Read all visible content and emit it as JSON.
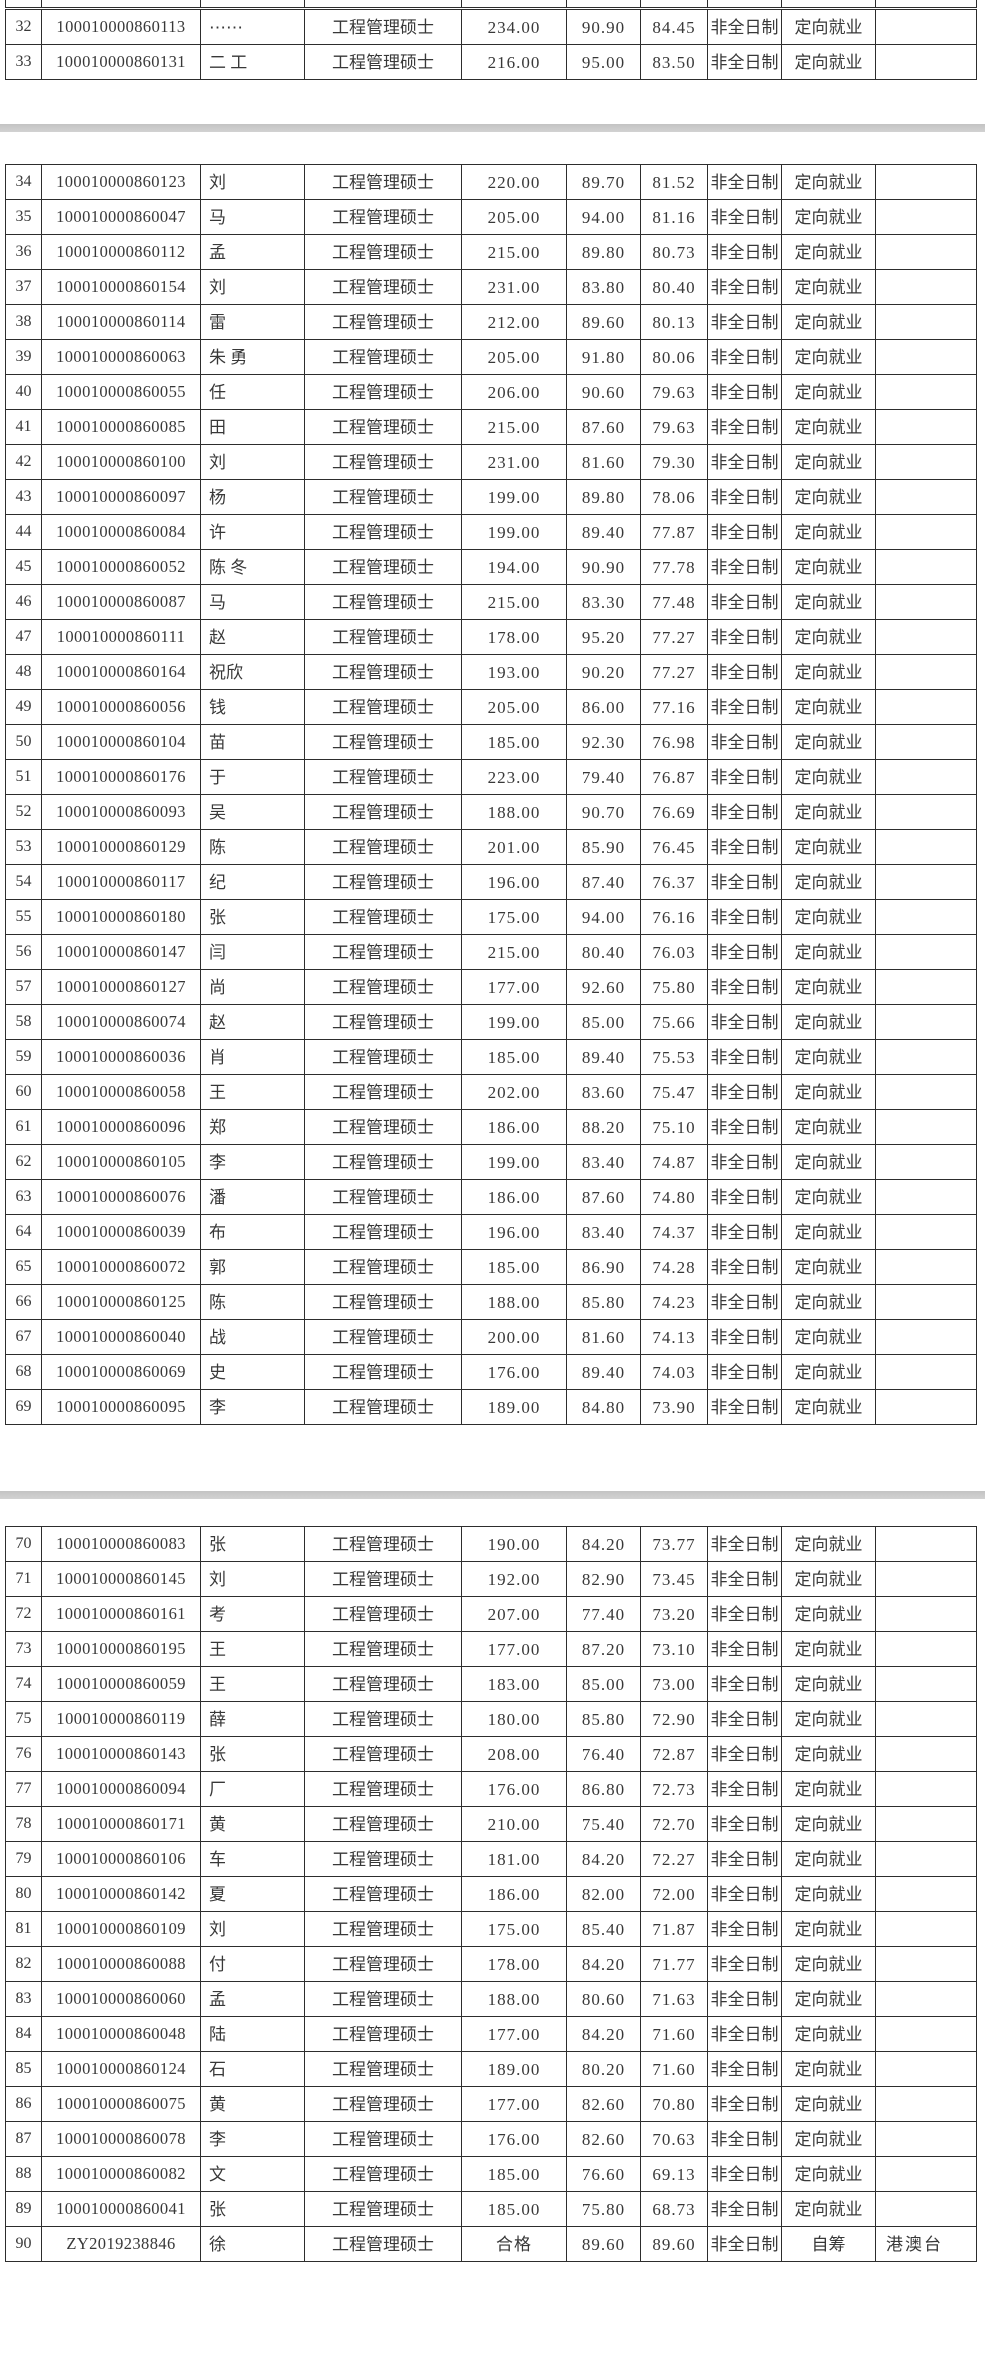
{
  "document": {
    "kind": "scanned-admissions-score-table",
    "visible_row_range": "32-90",
    "colors": {
      "border": "#2d2d2d",
      "text": "#383838",
      "page_break_bar": "#c9c9c9",
      "background": "#ffffff"
    }
  },
  "table": {
    "column_names": [
      "rank-cell",
      "candidate-id-cell",
      "name-cell",
      "program-cell",
      "total-score-cell",
      "second-score-cell",
      "weighted-score-cell",
      "study-mode-cell",
      "employment-type-cell",
      "remark-cell"
    ],
    "blocks": [
      {
        "label": "page-fragment-top",
        "start": 0,
        "count": 2
      },
      {
        "label": "page-middle",
        "start": 2,
        "count": 36
      },
      {
        "label": "page-bottom",
        "start": 38,
        "count": 21
      }
    ],
    "rows": [
      [
        32,
        "100010000860113",
        "⋯⋯",
        "工程管理硕士",
        "234.00",
        "90.90",
        "84.45",
        "非全日制",
        "定向就业",
        ""
      ],
      [
        33,
        "100010000860131",
        "二 工",
        "工程管理硕士",
        "216.00",
        "95.00",
        "83.50",
        "非全日制",
        "定向就业",
        ""
      ],
      [
        34,
        "100010000860123",
        "刘",
        "工程管理硕士",
        "220.00",
        "89.70",
        "81.52",
        "非全日制",
        "定向就业",
        ""
      ],
      [
        35,
        "100010000860047",
        "马",
        "工程管理硕士",
        "205.00",
        "94.00",
        "81.16",
        "非全日制",
        "定向就业",
        ""
      ],
      [
        36,
        "100010000860112",
        "孟",
        "工程管理硕士",
        "215.00",
        "89.80",
        "80.73",
        "非全日制",
        "定向就业",
        ""
      ],
      [
        37,
        "100010000860154",
        "刘",
        "工程管理硕士",
        "231.00",
        "83.80",
        "80.40",
        "非全日制",
        "定向就业",
        ""
      ],
      [
        38,
        "100010000860114",
        "雷",
        "工程管理硕士",
        "212.00",
        "89.60",
        "80.13",
        "非全日制",
        "定向就业",
        ""
      ],
      [
        39,
        "100010000860063",
        "朱 勇",
        "工程管理硕士",
        "205.00",
        "91.80",
        "80.06",
        "非全日制",
        "定向就业",
        ""
      ],
      [
        40,
        "100010000860055",
        "任",
        "工程管理硕士",
        "206.00",
        "90.60",
        "79.63",
        "非全日制",
        "定向就业",
        ""
      ],
      [
        41,
        "100010000860085",
        "田",
        "工程管理硕士",
        "215.00",
        "87.60",
        "79.63",
        "非全日制",
        "定向就业",
        ""
      ],
      [
        42,
        "100010000860100",
        "刘",
        "工程管理硕士",
        "231.00",
        "81.60",
        "79.30",
        "非全日制",
        "定向就业",
        ""
      ],
      [
        43,
        "100010000860097",
        "杨",
        "工程管理硕士",
        "199.00",
        "89.80",
        "78.06",
        "非全日制",
        "定向就业",
        ""
      ],
      [
        44,
        "100010000860084",
        "许",
        "工程管理硕士",
        "199.00",
        "89.40",
        "77.87",
        "非全日制",
        "定向就业",
        ""
      ],
      [
        45,
        "100010000860052",
        "陈 冬",
        "工程管理硕士",
        "194.00",
        "90.90",
        "77.78",
        "非全日制",
        "定向就业",
        ""
      ],
      [
        46,
        "100010000860087",
        "马",
        "工程管理硕士",
        "215.00",
        "83.30",
        "77.48",
        "非全日制",
        "定向就业",
        ""
      ],
      [
        47,
        "100010000860111",
        "赵",
        "工程管理硕士",
        "178.00",
        "95.20",
        "77.27",
        "非全日制",
        "定向就业",
        ""
      ],
      [
        48,
        "100010000860164",
        "祝欣",
        "工程管理硕士",
        "193.00",
        "90.20",
        "77.27",
        "非全日制",
        "定向就业",
        ""
      ],
      [
        49,
        "100010000860056",
        "钱",
        "工程管理硕士",
        "205.00",
        "86.00",
        "77.16",
        "非全日制",
        "定向就业",
        ""
      ],
      [
        50,
        "100010000860104",
        "苗",
        "工程管理硕士",
        "185.00",
        "92.30",
        "76.98",
        "非全日制",
        "定向就业",
        ""
      ],
      [
        51,
        "100010000860176",
        "于",
        "工程管理硕士",
        "223.00",
        "79.40",
        "76.87",
        "非全日制",
        "定向就业",
        ""
      ],
      [
        52,
        "100010000860093",
        "吴",
        "工程管理硕士",
        "188.00",
        "90.70",
        "76.69",
        "非全日制",
        "定向就业",
        ""
      ],
      [
        53,
        "100010000860129",
        "陈",
        "工程管理硕士",
        "201.00",
        "85.90",
        "76.45",
        "非全日制",
        "定向就业",
        ""
      ],
      [
        54,
        "100010000860117",
        "纪",
        "工程管理硕士",
        "196.00",
        "87.40",
        "76.37",
        "非全日制",
        "定向就业",
        ""
      ],
      [
        55,
        "100010000860180",
        "张",
        "工程管理硕士",
        "175.00",
        "94.00",
        "76.16",
        "非全日制",
        "定向就业",
        ""
      ],
      [
        56,
        "100010000860147",
        "闫",
        "工程管理硕士",
        "215.00",
        "80.40",
        "76.03",
        "非全日制",
        "定向就业",
        ""
      ],
      [
        57,
        "100010000860127",
        "尚",
        "工程管理硕士",
        "177.00",
        "92.60",
        "75.80",
        "非全日制",
        "定向就业",
        ""
      ],
      [
        58,
        "100010000860074",
        "赵",
        "工程管理硕士",
        "199.00",
        "85.00",
        "75.66",
        "非全日制",
        "定向就业",
        ""
      ],
      [
        59,
        "100010000860036",
        "肖",
        "工程管理硕士",
        "185.00",
        "89.40",
        "75.53",
        "非全日制",
        "定向就业",
        ""
      ],
      [
        60,
        "100010000860058",
        "王",
        "工程管理硕士",
        "202.00",
        "83.60",
        "75.47",
        "非全日制",
        "定向就业",
        ""
      ],
      [
        61,
        "100010000860096",
        "郑",
        "工程管理硕士",
        "186.00",
        "88.20",
        "75.10",
        "非全日制",
        "定向就业",
        ""
      ],
      [
        62,
        "100010000860105",
        "李",
        "工程管理硕士",
        "199.00",
        "83.40",
        "74.87",
        "非全日制",
        "定向就业",
        ""
      ],
      [
        63,
        "100010000860076",
        "潘",
        "工程管理硕士",
        "186.00",
        "87.60",
        "74.80",
        "非全日制",
        "定向就业",
        ""
      ],
      [
        64,
        "100010000860039",
        "布",
        "工程管理硕士",
        "196.00",
        "83.40",
        "74.37",
        "非全日制",
        "定向就业",
        ""
      ],
      [
        65,
        "100010000860072",
        "郭",
        "工程管理硕士",
        "185.00",
        "86.90",
        "74.28",
        "非全日制",
        "定向就业",
        ""
      ],
      [
        66,
        "100010000860125",
        "陈",
        "工程管理硕士",
        "188.00",
        "85.80",
        "74.23",
        "非全日制",
        "定向就业",
        ""
      ],
      [
        67,
        "100010000860040",
        "战",
        "工程管理硕士",
        "200.00",
        "81.60",
        "74.13",
        "非全日制",
        "定向就业",
        ""
      ],
      [
        68,
        "100010000860069",
        "史",
        "工程管理硕士",
        "176.00",
        "89.40",
        "74.03",
        "非全日制",
        "定向就业",
        ""
      ],
      [
        69,
        "100010000860095",
        "李",
        "工程管理硕士",
        "189.00",
        "84.80",
        "73.90",
        "非全日制",
        "定向就业",
        ""
      ],
      [
        70,
        "100010000860083",
        "张",
        "工程管理硕士",
        "190.00",
        "84.20",
        "73.77",
        "非全日制",
        "定向就业",
        ""
      ],
      [
        71,
        "100010000860145",
        "刘",
        "工程管理硕士",
        "192.00",
        "82.90",
        "73.45",
        "非全日制",
        "定向就业",
        ""
      ],
      [
        72,
        "100010000860161",
        "考",
        "工程管理硕士",
        "207.00",
        "77.40",
        "73.20",
        "非全日制",
        "定向就业",
        ""
      ],
      [
        73,
        "100010000860195",
        "王",
        "工程管理硕士",
        "177.00",
        "87.20",
        "73.10",
        "非全日制",
        "定向就业",
        ""
      ],
      [
        74,
        "100010000860059",
        "王",
        "工程管理硕士",
        "183.00",
        "85.00",
        "73.00",
        "非全日制",
        "定向就业",
        ""
      ],
      [
        75,
        "100010000860119",
        "薛",
        "工程管理硕士",
        "180.00",
        "85.80",
        "72.90",
        "非全日制",
        "定向就业",
        ""
      ],
      [
        76,
        "100010000860143",
        "张",
        "工程管理硕士",
        "208.00",
        "76.40",
        "72.87",
        "非全日制",
        "定向就业",
        ""
      ],
      [
        77,
        "100010000860094",
        "厂",
        "工程管理硕士",
        "176.00",
        "86.80",
        "72.73",
        "非全日制",
        "定向就业",
        ""
      ],
      [
        78,
        "100010000860171",
        "黄",
        "工程管理硕士",
        "210.00",
        "75.40",
        "72.70",
        "非全日制",
        "定向就业",
        ""
      ],
      [
        79,
        "100010000860106",
        "车",
        "工程管理硕士",
        "181.00",
        "84.20",
        "72.27",
        "非全日制",
        "定向就业",
        ""
      ],
      [
        80,
        "100010000860142",
        "夏",
        "工程管理硕士",
        "186.00",
        "82.00",
        "72.00",
        "非全日制",
        "定向就业",
        ""
      ],
      [
        81,
        "100010000860109",
        "刘",
        "工程管理硕士",
        "175.00",
        "85.40",
        "71.87",
        "非全日制",
        "定向就业",
        ""
      ],
      [
        82,
        "100010000860088",
        "付",
        "工程管理硕士",
        "178.00",
        "84.20",
        "71.77",
        "非全日制",
        "定向就业",
        ""
      ],
      [
        83,
        "100010000860060",
        "孟",
        "工程管理硕士",
        "188.00",
        "80.60",
        "71.63",
        "非全日制",
        "定向就业",
        ""
      ],
      [
        84,
        "100010000860048",
        "陆",
        "工程管理硕士",
        "177.00",
        "84.20",
        "71.60",
        "非全日制",
        "定向就业",
        ""
      ],
      [
        85,
        "100010000860124",
        "石",
        "工程管理硕士",
        "189.00",
        "80.20",
        "71.60",
        "非全日制",
        "定向就业",
        ""
      ],
      [
        86,
        "100010000860075",
        "黄",
        "工程管理硕士",
        "177.00",
        "82.60",
        "70.80",
        "非全日制",
        "定向就业",
        ""
      ],
      [
        87,
        "100010000860078",
        "李",
        "工程管理硕士",
        "176.00",
        "82.60",
        "70.63",
        "非全日制",
        "定向就业",
        ""
      ],
      [
        88,
        "100010000860082",
        "文",
        "工程管理硕士",
        "185.00",
        "76.60",
        "69.13",
        "非全日制",
        "定向就业",
        ""
      ],
      [
        89,
        "100010000860041",
        "张",
        "工程管理硕士",
        "185.00",
        "75.80",
        "68.73",
        "非全日制",
        "定向就业",
        ""
      ],
      [
        90,
        "ZY2019238846",
        "徐",
        "工程管理硕士",
        "合格",
        "89.60",
        "89.60",
        "非全日制",
        "自筹",
        "港澳台"
      ]
    ]
  }
}
